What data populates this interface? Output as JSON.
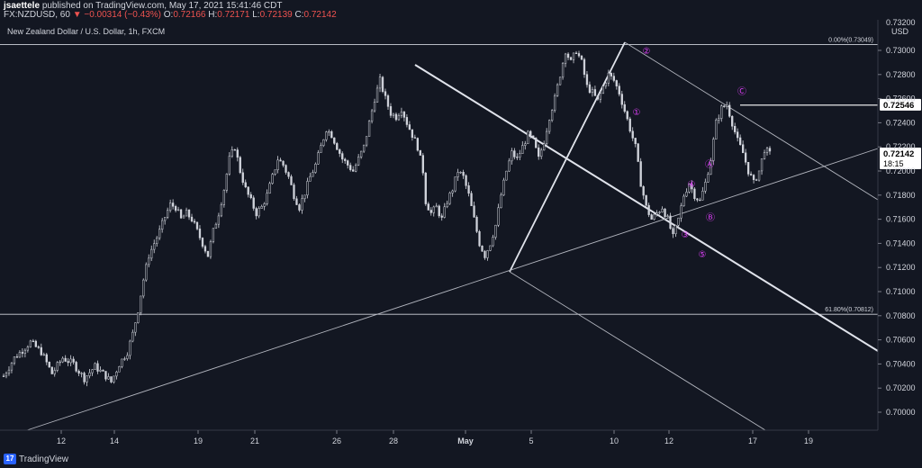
{
  "header": {
    "user": "jsaettele",
    "published_text": "published on TradingView.com, May 17, 2021 15:41:46 CDT",
    "symbol": "FX:NZDUSD, 60",
    "change_arrow": "▼",
    "change": "−0.00314 (−0.43%)",
    "o_label": "O:",
    "o_value": "0.72166",
    "h_label": "H:",
    "h_value": "0.72171",
    "l_label": "L:",
    "l_value": "0.72139",
    "c_label": "C:",
    "c_value": "0.72142"
  },
  "chart_data": {
    "type": "candlestick",
    "title": "New Zealand Dollar / U.S. Dollar, 1h, FXCM",
    "currency": "USD",
    "y_ticks": [
      "0.73000",
      "0.72800",
      "0.72600",
      "0.72400",
      "0.72200",
      "0.72000",
      "0.71800",
      "0.71600",
      "0.71400",
      "0.71200",
      "0.71000",
      "0.70800",
      "0.70600",
      "0.70400",
      "0.70200",
      "0.70000"
    ],
    "y_tick_values": [
      0.73,
      0.728,
      0.726,
      0.724,
      0.722,
      0.72,
      0.718,
      0.716,
      0.714,
      0.712,
      0.71,
      0.708,
      0.706,
      0.704,
      0.702,
      0.7
    ],
    "y_top_partial_label": "0.73200",
    "x_ticks": [
      "12",
      "14",
      "19",
      "21",
      "26",
      "28",
      "May",
      "5",
      "10",
      "12",
      "17",
      "19"
    ],
    "price_labels": [
      {
        "text": "0.72546",
        "value": 0.72546,
        "color": "#ffffff",
        "bg": "#ffffff",
        "fg": "#000000"
      },
      {
        "text": "0.72142",
        "value": 0.72142,
        "sub": "18:15",
        "bg": "#ffffff",
        "fg": "#000000"
      }
    ],
    "fib_levels": [
      {
        "label": "0.00%(0.73049)",
        "value": 0.73049
      },
      {
        "label": "61.80%(0.70812)",
        "value": 0.70812
      }
    ],
    "wave_labels": [
      "②",
      "①",
      "③",
      "④",
      "⑤",
      "Ⓐ",
      "Ⓑ",
      "Ⓒ"
    ],
    "wave_color": "#e040fb",
    "price_path": [
      [
        0,
        0.703
      ],
      [
        4,
        0.7045
      ],
      [
        10,
        0.7058
      ],
      [
        14,
        0.705
      ],
      [
        18,
        0.7032
      ],
      [
        22,
        0.7045
      ],
      [
        26,
        0.704
      ],
      [
        30,
        0.7028
      ],
      [
        34,
        0.7038
      ],
      [
        38,
        0.703
      ],
      [
        40,
        0.7025
      ],
      [
        43,
        0.704
      ],
      [
        46,
        0.705
      ],
      [
        48,
        0.7065
      ],
      [
        50,
        0.7085
      ],
      [
        52,
        0.711
      ],
      [
        54,
        0.713
      ],
      [
        56,
        0.714
      ],
      [
        58,
        0.715
      ],
      [
        60,
        0.7162
      ],
      [
        62,
        0.7172
      ],
      [
        64,
        0.717
      ],
      [
        66,
        0.716
      ],
      [
        68,
        0.7165
      ],
      [
        70,
        0.716
      ],
      [
        72,
        0.715
      ],
      [
        74,
        0.714
      ],
      [
        76,
        0.713
      ],
      [
        78,
        0.715
      ],
      [
        80,
        0.7165
      ],
      [
        82,
        0.7185
      ],
      [
        84,
        0.721
      ],
      [
        86,
        0.722
      ],
      [
        88,
        0.72
      ],
      [
        90,
        0.7185
      ],
      [
        92,
        0.7175
      ],
      [
        94,
        0.7165
      ],
      [
        96,
        0.717
      ],
      [
        98,
        0.718
      ],
      [
        100,
        0.7195
      ],
      [
        102,
        0.721
      ],
      [
        104,
        0.7205
      ],
      [
        106,
        0.7195
      ],
      [
        108,
        0.718
      ],
      [
        110,
        0.717
      ],
      [
        112,
        0.7182
      ],
      [
        114,
        0.7195
      ],
      [
        116,
        0.7205
      ],
      [
        118,
        0.722
      ],
      [
        120,
        0.7235
      ],
      [
        122,
        0.723
      ],
      [
        124,
        0.722
      ],
      [
        126,
        0.721
      ],
      [
        128,
        0.7205
      ],
      [
        130,
        0.72
      ],
      [
        132,
        0.721
      ],
      [
        134,
        0.722
      ],
      [
        136,
        0.724
      ],
      [
        138,
        0.726
      ],
      [
        140,
        0.7275
      ],
      [
        142,
        0.726
      ],
      [
        144,
        0.7248
      ],
      [
        146,
        0.7245
      ],
      [
        148,
        0.7252
      ],
      [
        150,
        0.724
      ],
      [
        152,
        0.723
      ],
      [
        154,
        0.722
      ],
      [
        156,
        0.72
      ],
      [
        157,
        0.7175
      ],
      [
        159,
        0.7165
      ],
      [
        161,
        0.717
      ],
      [
        163,
        0.716
      ],
      [
        165,
        0.7175
      ],
      [
        167,
        0.7185
      ],
      [
        169,
        0.72
      ],
      [
        171,
        0.7195
      ],
      [
        173,
        0.718
      ],
      [
        175,
        0.716
      ],
      [
        177,
        0.714
      ],
      [
        179,
        0.713
      ],
      [
        181,
        0.714
      ],
      [
        183,
        0.7155
      ],
      [
        185,
        0.718
      ],
      [
        187,
        0.72
      ],
      [
        189,
        0.7215
      ],
      [
        191,
        0.721
      ],
      [
        193,
        0.722
      ],
      [
        195,
        0.723
      ],
      [
        197,
        0.7225
      ],
      [
        199,
        0.721
      ],
      [
        201,
        0.7225
      ],
      [
        203,
        0.7245
      ],
      [
        205,
        0.726
      ],
      [
        207,
        0.728
      ],
      [
        209,
        0.73
      ],
      [
        211,
        0.729
      ],
      [
        213,
        0.73
      ],
      [
        215,
        0.729
      ],
      [
        217,
        0.727
      ],
      [
        219,
        0.7265
      ],
      [
        221,
        0.7258
      ],
      [
        223,
        0.727
      ],
      [
        225,
        0.728
      ],
      [
        227,
        0.7275
      ],
      [
        229,
        0.7265
      ],
      [
        231,
        0.725
      ],
      [
        233,
        0.7235
      ],
      [
        235,
        0.722
      ],
      [
        237,
        0.719
      ],
      [
        239,
        0.717
      ],
      [
        241,
        0.716
      ],
      [
        243,
        0.7165
      ],
      [
        245,
        0.717
      ],
      [
        247,
        0.716
      ],
      [
        249,
        0.7145
      ],
      [
        251,
        0.716
      ],
      [
        253,
        0.718
      ],
      [
        255,
        0.719
      ],
      [
        257,
        0.718
      ],
      [
        259,
        0.7175
      ],
      [
        261,
        0.719
      ],
      [
        263,
        0.721
      ],
      [
        265,
        0.724
      ],
      [
        267,
        0.7252
      ],
      [
        269,
        0.7255
      ],
      [
        271,
        0.724
      ],
      [
        273,
        0.7225
      ],
      [
        275,
        0.7215
      ],
      [
        277,
        0.72
      ],
      [
        279,
        0.719
      ],
      [
        281,
        0.72
      ],
      [
        283,
        0.7218
      ],
      [
        285,
        0.7214
      ]
    ]
  }
}
